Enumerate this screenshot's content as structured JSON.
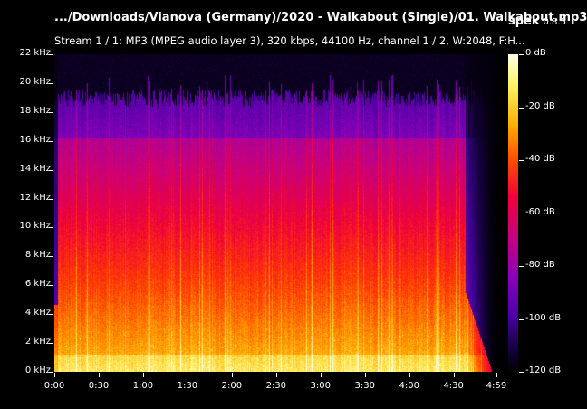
{
  "window": {
    "title": ".../Downloads/Vianova (Germany)/2020 - Walkabout (Single)/01. Walkabout.mp3",
    "app_name": "spek",
    "app_version": "0.8.5",
    "stream_info": "Stream 1 / 1: MP3 (MPEG audio layer 3), 320 kbps, 44100 Hz, channel 1 / 2, W:2048, F:H..."
  },
  "spectrogram": {
    "y_ticks": [
      "0 kHz",
      "2 kHz",
      "4 kHz",
      "6 kHz",
      "8 kHz",
      "10 kHz",
      "12 kHz",
      "14 kHz",
      "16 kHz",
      "18 kHz",
      "20 kHz",
      "22 kHz"
    ],
    "x_ticks": [
      "0:00",
      "0:30",
      "1:00",
      "1:30",
      "2:00",
      "2:30",
      "3:00",
      "3:30",
      "4:00",
      "4:30",
      "4:59"
    ],
    "duration_seconds": 299,
    "max_khz": 22,
    "cutoff_khz": 19
  },
  "colorbar": {
    "labels": [
      "0 dB",
      "-20 dB",
      "-40 dB",
      "-60 dB",
      "-80 dB",
      "-100 dB",
      "-120 dB"
    ]
  }
}
